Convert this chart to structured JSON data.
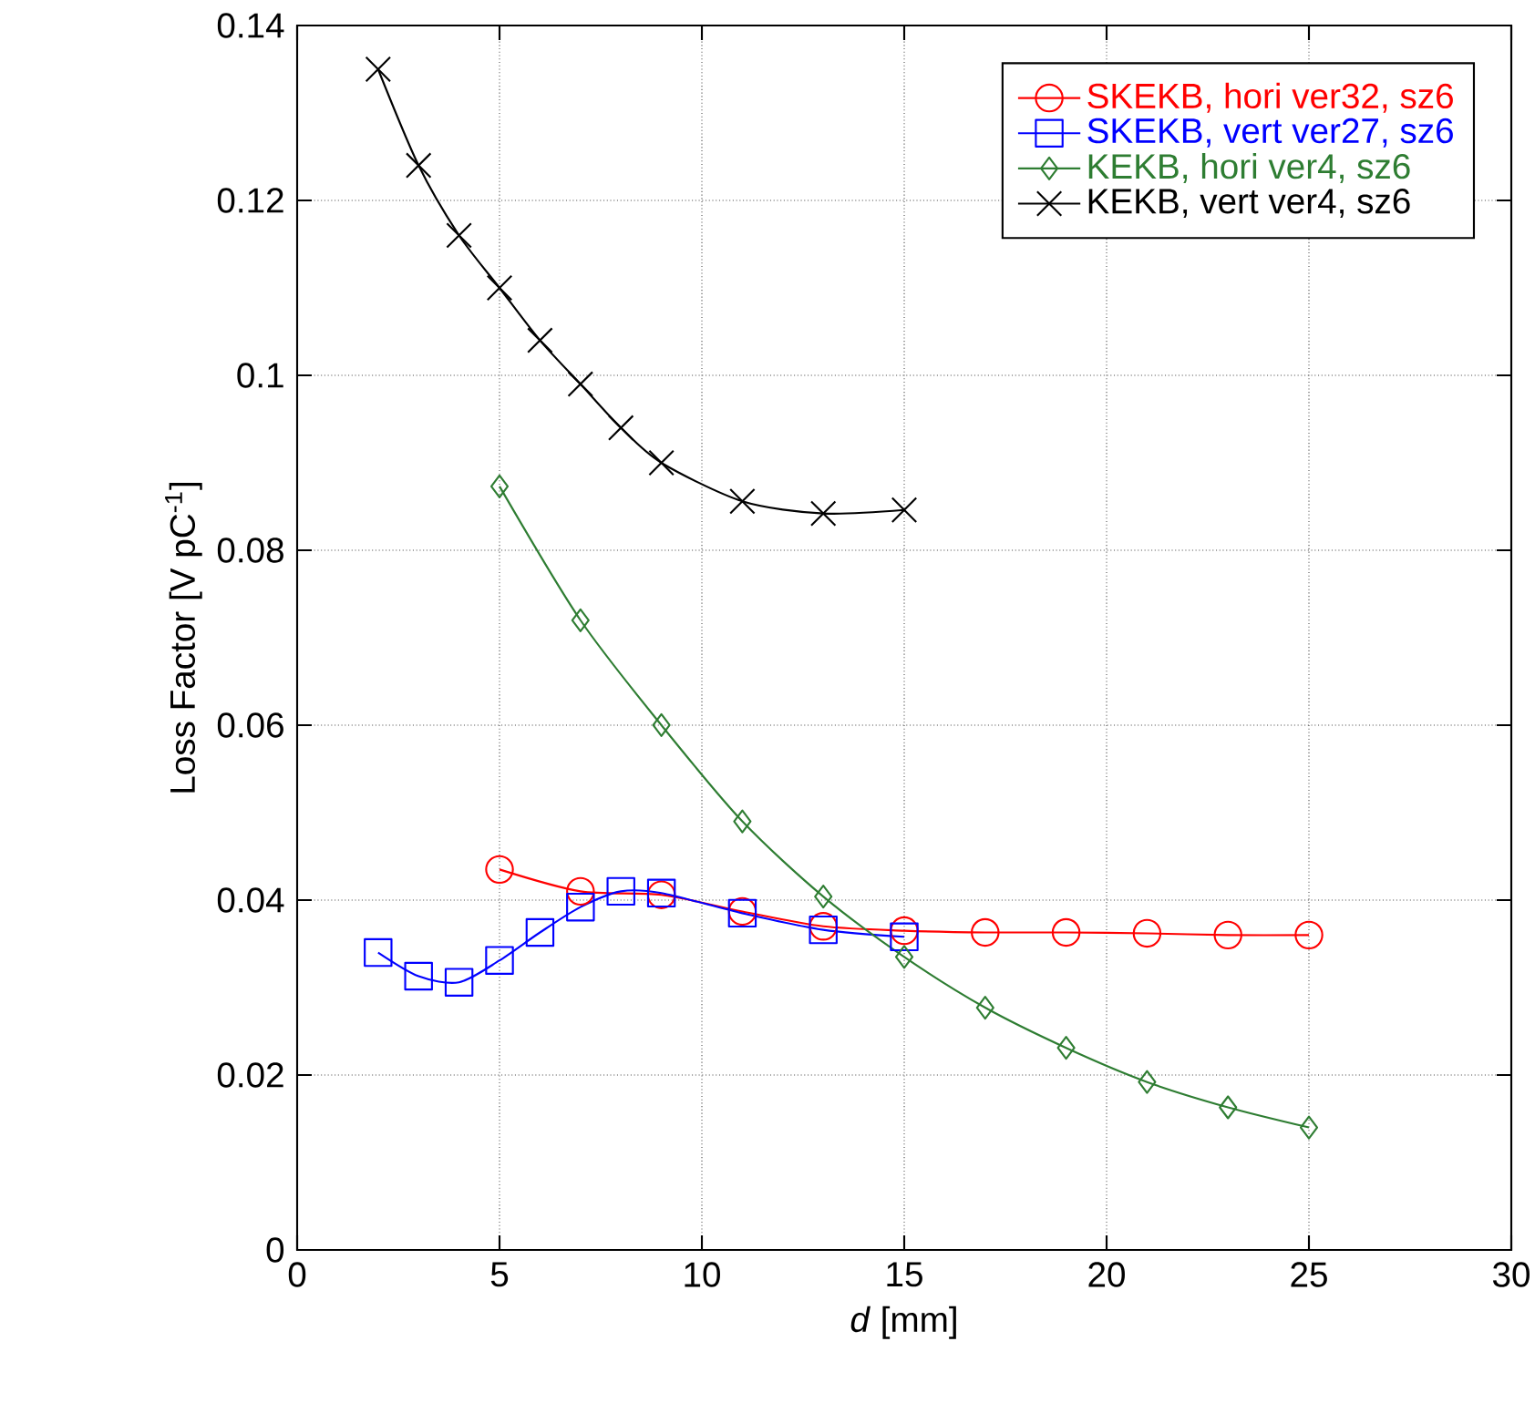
{
  "chart_data": {
    "type": "line",
    "xlabel": "*d* [mm]",
    "ylabel": "Loss Factor [V pC$^{-1}$]",
    "xlim": [
      0,
      30
    ],
    "xticks": [
      0,
      5,
      10,
      15,
      20,
      25,
      30
    ],
    "ylim": [
      0,
      0.14
    ],
    "yticks": [
      0,
      0.02,
      0.04,
      0.06,
      0.08,
      0.1,
      0.12,
      0.14
    ],
    "grid": true,
    "legend": "top right",
    "line_style": "solid",
    "series": [
      {
        "name": "SKEKB, hori ver32, sz6",
        "color": "#ff0000",
        "marker": "circle",
        "x": [
          5,
          7,
          9,
          11,
          13,
          15,
          17,
          19,
          21,
          23,
          25
        ],
        "values": [
          0.0435,
          0.041,
          0.0406,
          0.0387,
          0.037,
          0.0365,
          0.0363,
          0.0363,
          0.0362,
          0.036,
          0.036
        ]
      },
      {
        "name": "SKEKB, vert ver27, sz6",
        "color": "#0000ff",
        "marker": "square",
        "x": [
          2,
          3,
          4,
          5,
          6,
          7,
          8,
          9,
          11,
          13,
          15
        ],
        "values": [
          0.034,
          0.0313,
          0.0306,
          0.0331,
          0.0363,
          0.0392,
          0.041,
          0.0408,
          0.0385,
          0.0366,
          0.0358
        ]
      },
      {
        "name": "KEKB, hori ver4, sz6",
        "color": "#2e7d32",
        "marker": "diamond",
        "x": [
          5,
          7,
          9,
          11,
          13,
          15,
          17,
          19,
          21,
          23,
          25
        ],
        "values": [
          0.0873,
          0.072,
          0.06,
          0.049,
          0.0404,
          0.0335,
          0.0277,
          0.0231,
          0.0192,
          0.0163,
          0.014
        ]
      },
      {
        "name": "KEKB, vert ver4, sz6",
        "color": "#000000",
        "marker": "cross",
        "x": [
          2,
          3,
          4,
          5,
          6,
          7,
          8,
          9,
          11,
          13,
          15
        ],
        "values": [
          0.135,
          0.124,
          0.116,
          0.11,
          0.104,
          0.099,
          0.094,
          0.09,
          0.0856,
          0.0842,
          0.0846
        ]
      }
    ]
  }
}
